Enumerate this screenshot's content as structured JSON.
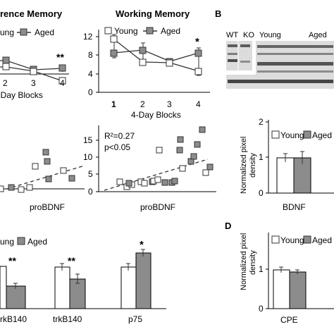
{
  "panel_labels": {
    "b": "B",
    "d": "D"
  },
  "reference_panel": {
    "title": "rence Memory",
    "legend": {
      "young": "ung",
      "aged": "Aged"
    },
    "x_ticks": [
      "2",
      "3",
      "4"
    ],
    "x_label": "4-Day Blocks",
    "significance": "**"
  },
  "working_panel": {
    "title": "Working Memory",
    "legend": {
      "young": "Young",
      "aged": "Aged"
    },
    "y_ticks": [
      "0",
      "4",
      "8",
      "12"
    ],
    "x_ticks": [
      "1",
      "2",
      "3",
      "4"
    ],
    "x_label": "4-Day Blocks",
    "significance": "*"
  },
  "scatter_left": {
    "x_label": "proBDNF"
  },
  "scatter_right": {
    "x_label": "proBDNF",
    "y_ticks": [
      "0",
      "5",
      "10",
      "15"
    ],
    "stat_r2": "R²=0.27",
    "stat_p": "p<0.05"
  },
  "trk_panel": {
    "legend": {
      "young": "ung",
      "aged": "Aged"
    },
    "categories": [
      "rkB140",
      "trkB140",
      "p75"
    ],
    "significance": [
      "**",
      "**",
      "*"
    ]
  },
  "blot": {
    "labels": [
      "WT",
      "KO",
      "Young",
      "Aged"
    ]
  },
  "bdnf_panel": {
    "legend": {
      "young": "Young",
      "aged": "Aged"
    },
    "y_label": [
      "Normalized pixel",
      "density"
    ],
    "y_ticks": [
      "0",
      "1",
      "2"
    ],
    "category": "BDNF"
  },
  "cpe_panel": {
    "legend": {
      "young": "Young",
      "aged": "Aged"
    },
    "y_label": [
      "Normalized pixel",
      "density"
    ],
    "y_ticks": [
      "0",
      "1"
    ],
    "category": "CPE"
  },
  "colors": {
    "young": "#ffffff",
    "aged": "#8c8c8c",
    "line": "#333333"
  },
  "chart_data": [
    {
      "type": "line",
      "x": [
        1,
        2,
        3,
        4
      ],
      "series": [
        {
          "name": "Young",
          "values": [
            11.5,
            6.8,
            6.5,
            5.0
          ],
          "errors": [
            1.0,
            0.7,
            0.6,
            0.8
          ]
        },
        {
          "name": "Aged",
          "values": [
            8.5,
            9.2,
            6.8,
            8.5
          ],
          "errors": [
            0.9,
            1.5,
            0.7,
            1.0
          ]
        }
      ],
      "title": "Working Memory",
      "xlabel": "4-Day Blocks",
      "ylim": [
        0,
        14
      ]
    },
    {
      "type": "scatter",
      "xlabel": "proBDNF",
      "ylim": [
        0,
        19
      ],
      "series": [
        {
          "name": "Young",
          "points": [
            [
              5,
              3.8
            ],
            [
              18,
              2.5
            ],
            [
              27,
              3
            ],
            [
              33,
              4
            ],
            [
              65,
              3.5
            ],
            [
              71,
              3.8
            ],
            [
              76,
              10
            ]
          ]
        },
        {
          "name": "Aged",
          "points": [
            [
              20,
              2.8
            ],
            [
              40,
              3.5
            ],
            [
              54,
              3
            ],
            [
              84,
              12.3
            ],
            [
              94,
              15
            ],
            [
              107,
              9.5
            ],
            [
              118,
              18
            ],
            [
              112,
              12
            ],
            [
              141,
              7.5
            ]
          ]
        }
      ]
    },
    {
      "type": "bar",
      "categories": [
        "BDNF"
      ],
      "series": [
        {
          "name": "Young",
          "values": [
            1.0
          ],
          "errors": [
            0.1
          ]
        },
        {
          "name": "Aged",
          "values": [
            1.0
          ],
          "errors": [
            0.15
          ]
        }
      ],
      "ylabel": "Normalized pixel density",
      "ylim": [
        0,
        2
      ]
    },
    {
      "type": "bar",
      "categories": [
        "CPE"
      ],
      "series": [
        {
          "name": "Young",
          "values": [
            1.0
          ],
          "errors": [
            0.06
          ]
        },
        {
          "name": "Aged",
          "values": [
            0.95
          ],
          "errors": [
            0.04
          ]
        }
      ],
      "ylabel": "Normalized pixel density",
      "ylim": [
        0,
        1.4
      ]
    }
  ]
}
